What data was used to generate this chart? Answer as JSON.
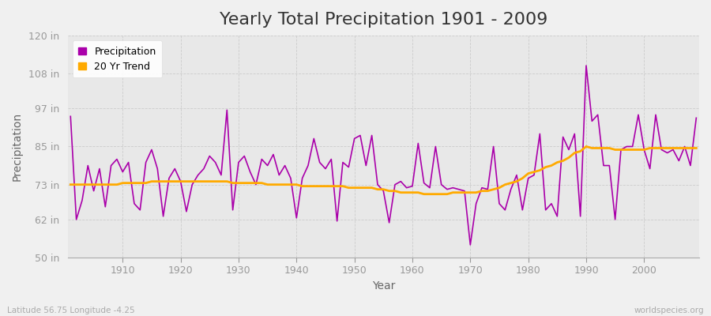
{
  "title": "Yearly Total Precipitation 1901 - 2009",
  "xlabel": "Year",
  "ylabel": "Precipitation",
  "subtitle_left": "Latitude 56.75 Longitude -4.25",
  "subtitle_right": "worldspecies.org",
  "years": [
    1901,
    1902,
    1903,
    1904,
    1905,
    1906,
    1907,
    1908,
    1909,
    1910,
    1911,
    1912,
    1913,
    1914,
    1915,
    1916,
    1917,
    1918,
    1919,
    1920,
    1921,
    1922,
    1923,
    1924,
    1925,
    1926,
    1927,
    1928,
    1929,
    1930,
    1931,
    1932,
    1933,
    1934,
    1935,
    1936,
    1937,
    1938,
    1939,
    1940,
    1941,
    1942,
    1943,
    1944,
    1945,
    1946,
    1947,
    1948,
    1949,
    1950,
    1951,
    1952,
    1953,
    1954,
    1955,
    1956,
    1957,
    1958,
    1959,
    1960,
    1961,
    1962,
    1963,
    1964,
    1965,
    1966,
    1967,
    1968,
    1969,
    1970,
    1971,
    1972,
    1973,
    1974,
    1975,
    1976,
    1977,
    1978,
    1979,
    1980,
    1981,
    1982,
    1983,
    1984,
    1985,
    1986,
    1987,
    1988,
    1989,
    1990,
    1991,
    1992,
    1993,
    1994,
    1995,
    1996,
    1997,
    1998,
    1999,
    2000,
    2001,
    2002,
    2003,
    2004,
    2005,
    2006,
    2007,
    2008,
    2009
  ],
  "precip": [
    94.5,
    62.0,
    68.0,
    79.0,
    71.0,
    78.0,
    66.0,
    79.0,
    81.0,
    77.0,
    80.0,
    67.0,
    65.0,
    80.0,
    84.0,
    78.0,
    63.0,
    75.0,
    78.0,
    74.0,
    64.5,
    73.0,
    76.0,
    78.0,
    82.0,
    80.0,
    76.0,
    96.5,
    65.0,
    80.0,
    82.0,
    77.0,
    73.0,
    81.0,
    79.0,
    82.5,
    76.0,
    79.0,
    75.0,
    62.5,
    75.0,
    79.0,
    87.5,
    80.0,
    78.0,
    81.0,
    61.5,
    80.0,
    78.5,
    87.5,
    88.5,
    79.0,
    88.5,
    73.0,
    71.0,
    61.0,
    73.0,
    74.0,
    72.0,
    72.5,
    86.0,
    73.5,
    72.0,
    85.0,
    73.0,
    71.5,
    72.0,
    71.5,
    71.0,
    54.0,
    67.0,
    72.0,
    71.5,
    85.0,
    67.0,
    65.0,
    71.5,
    76.0,
    65.0,
    75.0,
    76.0,
    89.0,
    65.0,
    67.0,
    63.0,
    88.0,
    84.0,
    89.0,
    63.0,
    110.5,
    93.0,
    95.0,
    79.0,
    79.0,
    62.0,
    84.0,
    85.0,
    85.0,
    95.0,
    84.0,
    78.0,
    95.0,
    84.0,
    83.0,
    84.0,
    80.5,
    85.0,
    79.0,
    94.0
  ],
  "trend": [
    73.0,
    73.0,
    73.0,
    73.0,
    73.0,
    73.0,
    73.0,
    73.0,
    73.0,
    73.5,
    73.5,
    73.5,
    73.5,
    73.5,
    74.0,
    74.0,
    74.0,
    74.0,
    74.0,
    74.0,
    74.0,
    74.0,
    74.0,
    74.0,
    74.0,
    74.0,
    74.0,
    74.0,
    73.5,
    73.5,
    73.5,
    73.5,
    73.5,
    73.5,
    73.0,
    73.0,
    73.0,
    73.0,
    73.0,
    73.0,
    72.5,
    72.5,
    72.5,
    72.5,
    72.5,
    72.5,
    72.5,
    72.5,
    72.0,
    72.0,
    72.0,
    72.0,
    72.0,
    71.5,
    71.5,
    71.0,
    71.0,
    70.5,
    70.5,
    70.5,
    70.5,
    70.0,
    70.0,
    70.0,
    70.0,
    70.0,
    70.5,
    70.5,
    70.5,
    70.5,
    70.5,
    71.0,
    71.0,
    71.5,
    72.0,
    73.0,
    73.5,
    74.0,
    75.0,
    76.5,
    77.0,
    77.5,
    78.5,
    79.0,
    80.0,
    80.5,
    81.5,
    83.0,
    83.5,
    85.0,
    84.5,
    84.5,
    84.5,
    84.5,
    84.0,
    84.0,
    84.0,
    84.0,
    84.0,
    84.0,
    84.5,
    84.5,
    84.5,
    84.5,
    84.5,
    84.5,
    84.5,
    84.5,
    84.5
  ],
  "precip_color": "#aa00aa",
  "trend_color": "#ffaa00",
  "bg_color": "#f0f0f0",
  "plot_bg_color": "#e8e8e8",
  "grid_color": "#cccccc",
  "ylim": [
    50,
    120
  ],
  "yticks": [
    50,
    62,
    73,
    85,
    97,
    108,
    120
  ],
  "ytick_labels": [
    "50 in",
    "62 in",
    "73 in",
    "85 in",
    "97 in",
    "108 in",
    "120 in"
  ],
  "xlim_min": 1901,
  "xlim_max": 2009,
  "xticks": [
    1910,
    1920,
    1930,
    1940,
    1950,
    1960,
    1970,
    1980,
    1990,
    2000
  ],
  "title_fontsize": 16,
  "axis_label_fontsize": 10,
  "tick_fontsize": 9,
  "legend_fontsize": 9,
  "tick_color": "#999999",
  "label_color": "#666666"
}
